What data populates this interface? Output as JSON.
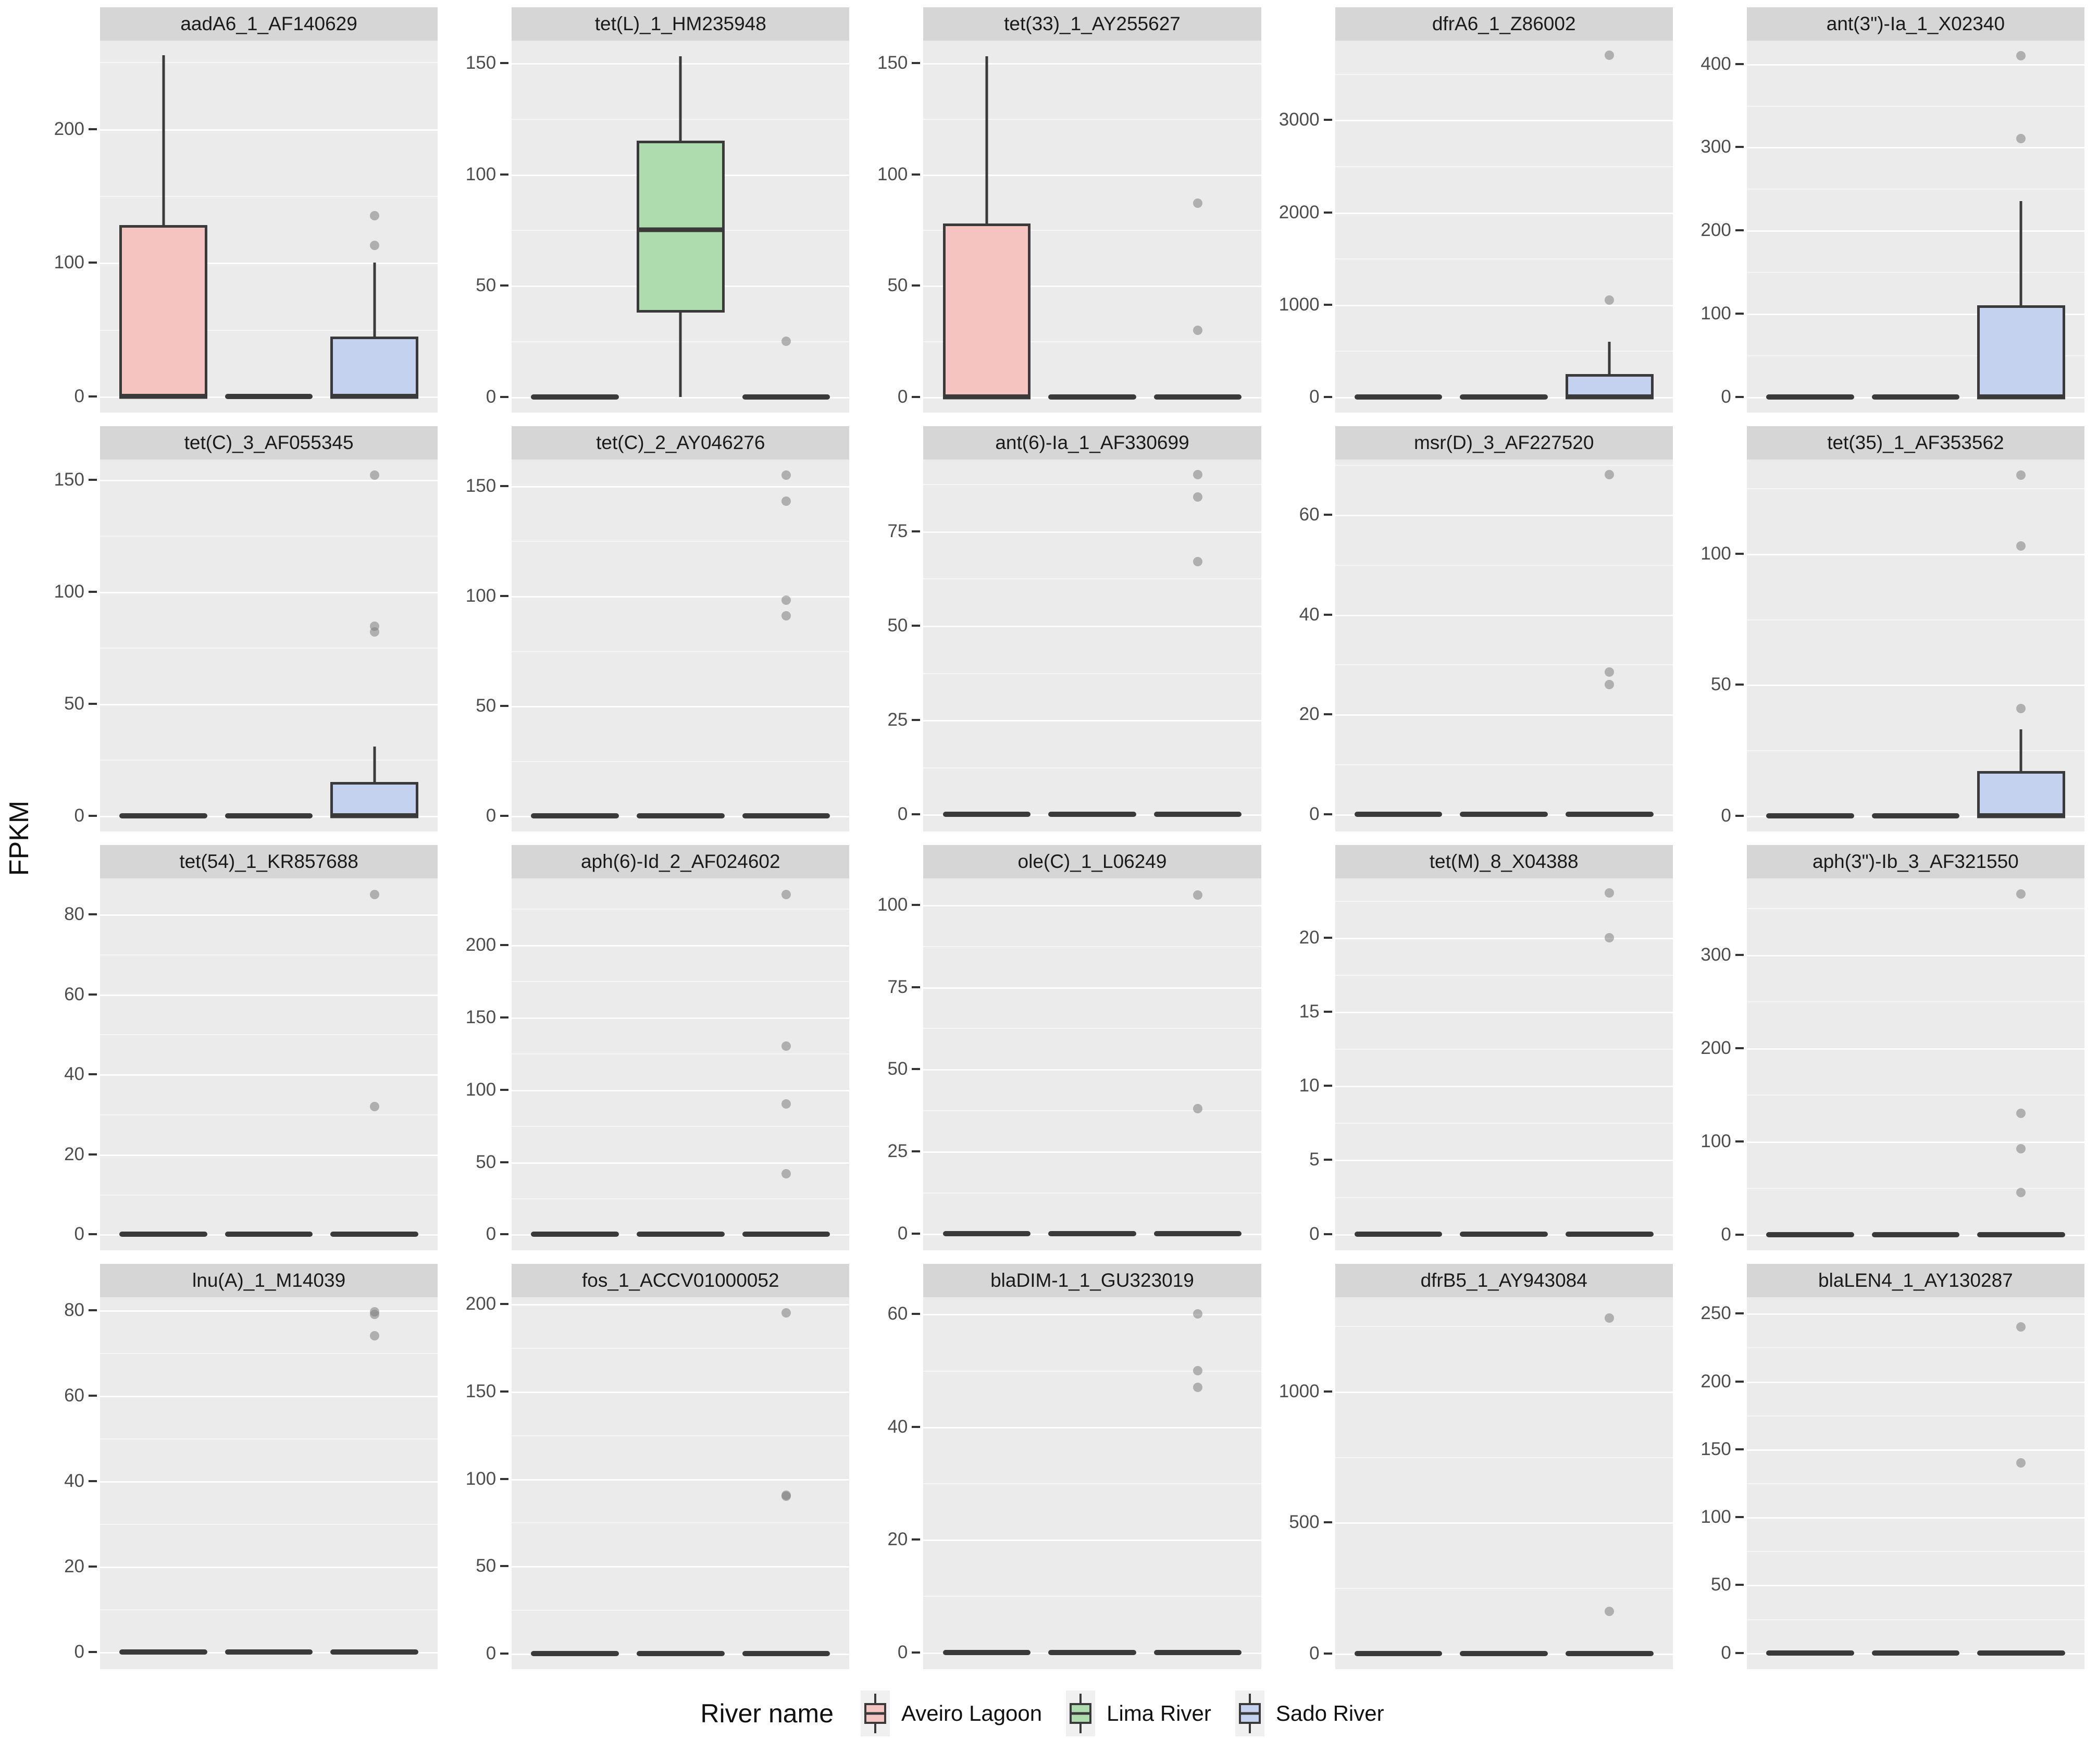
{
  "ylabel": "FPKM",
  "legend": {
    "title": "River name",
    "items": [
      {
        "label": "Aveiro Lagoon",
        "fill": "#F5C4C0"
      },
      {
        "label": "Lima River",
        "fill": "#AFDCAE"
      },
      {
        "label": "Sado River",
        "fill": "#C4D2F0"
      }
    ]
  },
  "chart_data": {
    "type": "boxplot",
    "facet_rows": 4,
    "facet_cols": 5,
    "ylabel": "FPKM",
    "categories": [
      "Aveiro Lagoon",
      "Lima River",
      "Sado River"
    ],
    "group_fills": [
      "#F5C4C0",
      "#AFDCAE",
      "#C4D2F0"
    ],
    "stroke": "#3a3a3a",
    "panel_bg": "#ebebeb",
    "strip_bg": "#d6d6d6",
    "legend_position": "bottom",
    "panels": [
      {
        "title": "aadA6_1_AF140629",
        "yticks": [
          0,
          100,
          200
        ],
        "ylim": [
          -12,
          266
        ],
        "groups": [
          {
            "name": "Aveiro Lagoon",
            "box": {
              "q1": 0,
              "median": 0,
              "q3": 128,
              "lo": 0,
              "hi": 255
            },
            "outliers": []
          },
          {
            "name": "Lima River",
            "box": null,
            "outliers": []
          },
          {
            "name": "Sado River",
            "box": {
              "q1": 0,
              "median": 0,
              "q3": 45,
              "lo": 0,
              "hi": 100
            },
            "outliers": [
              113,
              135
            ]
          }
        ]
      },
      {
        "title": "tet(L)_1_HM235948",
        "yticks": [
          0,
          50,
          100,
          150
        ],
        "ylim": [
          -7,
          160
        ],
        "groups": [
          {
            "name": "Aveiro Lagoon",
            "box": null,
            "outliers": []
          },
          {
            "name": "Lima River",
            "box": {
              "q1": 38,
              "median": 75,
              "q3": 115,
              "lo": 0,
              "hi": 153
            },
            "outliers": []
          },
          {
            "name": "Sado River",
            "box": null,
            "outliers": [
              25
            ]
          }
        ]
      },
      {
        "title": "tet(33)_1_AY255627",
        "yticks": [
          0,
          50,
          100,
          150
        ],
        "ylim": [
          -7,
          160
        ],
        "groups": [
          {
            "name": "Aveiro Lagoon",
            "box": {
              "q1": 0,
              "median": 0,
              "q3": 78,
              "lo": 0,
              "hi": 153
            },
            "outliers": []
          },
          {
            "name": "Lima River",
            "box": null,
            "outliers": []
          },
          {
            "name": "Sado River",
            "box": null,
            "outliers": [
              30,
              87
            ]
          }
        ]
      },
      {
        "title": "dfrA6_1_Z86002",
        "yticks": [
          0,
          1000,
          2000,
          3000
        ],
        "ylim": [
          -170,
          3860
        ],
        "groups": [
          {
            "name": "Aveiro Lagoon",
            "box": null,
            "outliers": []
          },
          {
            "name": "Lima River",
            "box": null,
            "outliers": []
          },
          {
            "name": "Sado River",
            "box": {
              "q1": 0,
              "median": 0,
              "q3": 250,
              "lo": 0,
              "hi": 600
            },
            "outliers": [
              1050,
              3700
            ]
          }
        ]
      },
      {
        "title": "ant(3\")-Ia_1_X02340",
        "yticks": [
          0,
          100,
          200,
          300,
          400
        ],
        "ylim": [
          -19,
          428
        ],
        "groups": [
          {
            "name": "Aveiro Lagoon",
            "box": null,
            "outliers": []
          },
          {
            "name": "Lima River",
            "box": null,
            "outliers": []
          },
          {
            "name": "Sado River",
            "box": {
              "q1": 0,
              "median": 0,
              "q3": 110,
              "lo": 0,
              "hi": 235
            },
            "outliers": [
              310,
              410
            ]
          }
        ]
      },
      {
        "title": "tet(C)_3_AF055345",
        "yticks": [
          0,
          50,
          100,
          150
        ],
        "ylim": [
          -7,
          159
        ],
        "groups": [
          {
            "name": "Aveiro Lagoon",
            "box": null,
            "outliers": []
          },
          {
            "name": "Lima River",
            "box": null,
            "outliers": []
          },
          {
            "name": "Sado River",
            "box": {
              "q1": 0,
              "median": 0,
              "q3": 15,
              "lo": 0,
              "hi": 31
            },
            "outliers": [
              82,
              84.5,
              152
            ]
          }
        ]
      },
      {
        "title": "tet(C)_2_AY046276",
        "yticks": [
          0,
          50,
          100,
          150
        ],
        "ylim": [
          -7,
          162
        ],
        "groups": [
          {
            "name": "Aveiro Lagoon",
            "box": null,
            "outliers": []
          },
          {
            "name": "Lima River",
            "box": null,
            "outliers": []
          },
          {
            "name": "Sado River",
            "box": null,
            "outliers": [
              91,
              98,
              143,
              155
            ]
          }
        ]
      },
      {
        "title": "ant(6)-Ia_1_AF330699",
        "yticks": [
          0,
          25,
          50,
          75
        ],
        "ylim": [
          -4.5,
          94
        ],
        "groups": [
          {
            "name": "Aveiro Lagoon",
            "box": null,
            "outliers": []
          },
          {
            "name": "Lima River",
            "box": null,
            "outliers": []
          },
          {
            "name": "Sado River",
            "box": null,
            "outliers": [
              67,
              84,
              90
            ]
          }
        ]
      },
      {
        "title": "msr(D)_3_AF227520",
        "yticks": [
          0,
          20,
          40,
          60
        ],
        "ylim": [
          -3.4,
          71
        ],
        "groups": [
          {
            "name": "Aveiro Lagoon",
            "box": null,
            "outliers": []
          },
          {
            "name": "Lima River",
            "box": null,
            "outliers": []
          },
          {
            "name": "Sado River",
            "box": null,
            "outliers": [
              26,
              28.5,
              68
            ]
          }
        ]
      },
      {
        "title": "tet(35)_1_AF353562",
        "yticks": [
          0,
          50,
          100
        ],
        "ylim": [
          -6,
          136
        ],
        "groups": [
          {
            "name": "Aveiro Lagoon",
            "box": null,
            "outliers": []
          },
          {
            "name": "Lima River",
            "box": null,
            "outliers": []
          },
          {
            "name": "Sado River",
            "box": {
              "q1": 0,
              "median": 0,
              "q3": 17,
              "lo": 0,
              "hi": 33
            },
            "outliers": [
              41,
              103,
              130
            ]
          }
        ]
      },
      {
        "title": "tet(54)_1_KR857688",
        "yticks": [
          0,
          20,
          40,
          60,
          80
        ],
        "ylim": [
          -4,
          89
        ],
        "groups": [
          {
            "name": "Aveiro Lagoon",
            "box": null,
            "outliers": []
          },
          {
            "name": "Lima River",
            "box": null,
            "outliers": []
          },
          {
            "name": "Sado River",
            "box": null,
            "outliers": [
              32,
              85
            ]
          }
        ]
      },
      {
        "title": "aph(6)-Id_2_AF024602",
        "yticks": [
          0,
          50,
          100,
          150,
          200
        ],
        "ylim": [
          -11,
          246
        ],
        "groups": [
          {
            "name": "Aveiro Lagoon",
            "box": null,
            "outliers": []
          },
          {
            "name": "Lima River",
            "box": null,
            "outliers": []
          },
          {
            "name": "Sado River",
            "box": null,
            "outliers": [
              42,
              90,
              130,
              235
            ]
          }
        ]
      },
      {
        "title": "ole(C)_1_L06249",
        "yticks": [
          0,
          25,
          50,
          75,
          100
        ],
        "ylim": [
          -5,
          108
        ],
        "groups": [
          {
            "name": "Aveiro Lagoon",
            "box": null,
            "outliers": []
          },
          {
            "name": "Lima River",
            "box": null,
            "outliers": []
          },
          {
            "name": "Sado River",
            "box": null,
            "outliers": [
              38,
              103
            ]
          }
        ]
      },
      {
        "title": "tet(M)_8_X04388",
        "yticks": [
          0,
          5,
          10,
          15,
          20
        ],
        "ylim": [
          -1.1,
          24
        ],
        "groups": [
          {
            "name": "Aveiro Lagoon",
            "box": null,
            "outliers": []
          },
          {
            "name": "Lima River",
            "box": null,
            "outliers": []
          },
          {
            "name": "Sado River",
            "box": null,
            "outliers": [
              20,
              23
            ]
          }
        ]
      },
      {
        "title": "aph(3\")-Ib_3_AF321550",
        "yticks": [
          0,
          100,
          200,
          300
        ],
        "ylim": [
          -17,
          382
        ],
        "groups": [
          {
            "name": "Aveiro Lagoon",
            "box": null,
            "outliers": []
          },
          {
            "name": "Lima River",
            "box": null,
            "outliers": []
          },
          {
            "name": "Sado River",
            "box": null,
            "outliers": [
              45,
              92,
              130,
              365
            ]
          }
        ]
      },
      {
        "title": "lnu(A)_1_M14039",
        "yticks": [
          0,
          20,
          40,
          60,
          80
        ],
        "ylim": [
          -4,
          83
        ],
        "groups": [
          {
            "name": "Aveiro Lagoon",
            "box": null,
            "outliers": []
          },
          {
            "name": "Lima River",
            "box": null,
            "outliers": []
          },
          {
            "name": "Sado River",
            "box": null,
            "outliers": [
              74,
              79,
              79.6
            ]
          }
        ]
      },
      {
        "title": "fos_1_ACCV01000052",
        "yticks": [
          0,
          50,
          100,
          150,
          200
        ],
        "ylim": [
          -9,
          204
        ],
        "groups": [
          {
            "name": "Aveiro Lagoon",
            "box": null,
            "outliers": []
          },
          {
            "name": "Lima River",
            "box": null,
            "outliers": []
          },
          {
            "name": "Sado River",
            "box": null,
            "outliers": [
              90,
              90.5,
              195
            ]
          }
        ]
      },
      {
        "title": "blaDIM-1_1_GU323019",
        "yticks": [
          0,
          20,
          40,
          60
        ],
        "ylim": [
          -3,
          63
        ],
        "groups": [
          {
            "name": "Aveiro Lagoon",
            "box": null,
            "outliers": []
          },
          {
            "name": "Lima River",
            "box": null,
            "outliers": []
          },
          {
            "name": "Sado River",
            "box": null,
            "outliers": [
              47,
              50,
              60
            ]
          }
        ]
      },
      {
        "title": "dfrB5_1_AY943084",
        "yticks": [
          0,
          500,
          1000
        ],
        "ylim": [
          -60,
          1360
        ],
        "groups": [
          {
            "name": "Aveiro Lagoon",
            "box": null,
            "outliers": []
          },
          {
            "name": "Lima River",
            "box": null,
            "outliers": []
          },
          {
            "name": "Sado River",
            "box": null,
            "outliers": [
              160,
              1280
            ]
          }
        ]
      },
      {
        "title": "blaLEN4_1_AY130287",
        "yticks": [
          0,
          50,
          100,
          150,
          200,
          250
        ],
        "ylim": [
          -12,
          262
        ],
        "groups": [
          {
            "name": "Aveiro Lagoon",
            "box": null,
            "outliers": []
          },
          {
            "name": "Lima River",
            "box": null,
            "outliers": []
          },
          {
            "name": "Sado River",
            "box": null,
            "outliers": [
              140,
              240
            ]
          }
        ]
      }
    ]
  }
}
